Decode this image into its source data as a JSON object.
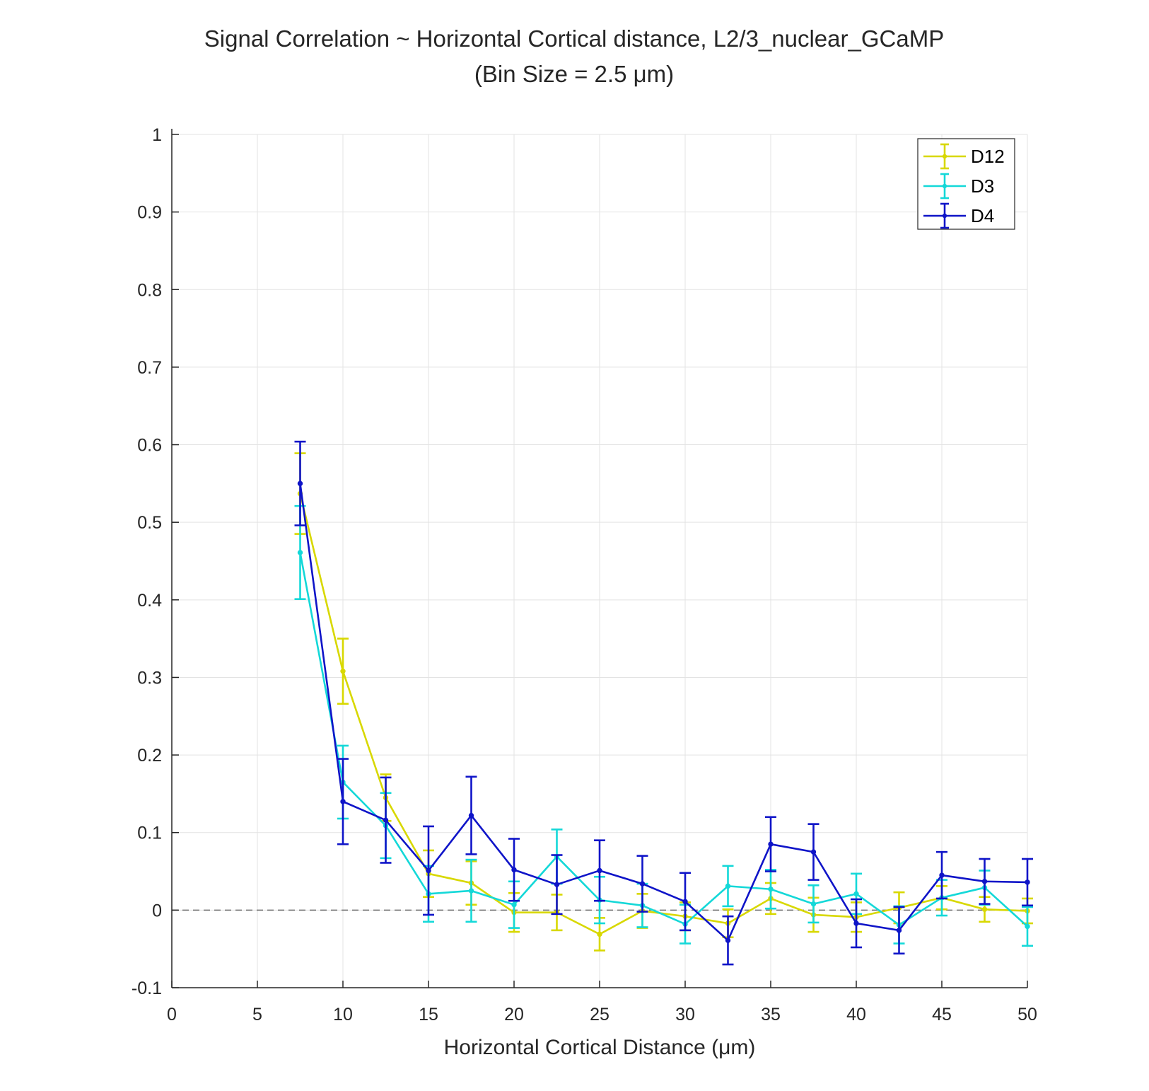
{
  "chart_data": {
    "type": "line",
    "title": "Signal Correlation ~ Horizontal Cortical distance, L2/3_nuclear_GCaMP",
    "subtitle": "(Bin Size = 2.5 μm)",
    "xlabel": "Horizontal Cortical Distance (μm)",
    "ylabel": "",
    "xlim": [
      0,
      50
    ],
    "ylim": [
      -0.1,
      1
    ],
    "xticks": [
      0,
      5,
      10,
      15,
      20,
      25,
      30,
      35,
      40,
      45,
      50
    ],
    "xtick_labels": [
      "0",
      "5",
      "10",
      "15",
      "20",
      "25",
      "30",
      "35",
      "40",
      "45",
      "50"
    ],
    "yticks": [
      -0.1,
      0,
      0.1,
      0.2,
      0.3,
      0.4,
      0.5,
      0.6,
      0.7,
      0.8,
      0.9,
      1
    ],
    "ytick_labels": [
      "-0.1",
      "0",
      "0.1",
      "0.2",
      "0.3",
      "0.4",
      "0.5",
      "0.6",
      "0.7",
      "0.8",
      "0.9",
      "1"
    ],
    "grid": true,
    "reference_line": {
      "y": 0,
      "style": "dashed",
      "color": "#6e6e6e"
    },
    "legend": {
      "position": "top-right",
      "entries": [
        "D12",
        "D3",
        "D4"
      ]
    },
    "x": [
      7.5,
      10,
      12.5,
      15,
      17.5,
      20,
      22.5,
      25,
      27.5,
      30,
      32.5,
      35,
      37.5,
      40,
      42.5,
      45,
      47.5,
      50
    ],
    "series": [
      {
        "name": "D12",
        "color": "#d8d800",
        "values": [
          0.537,
          0.308,
          0.145,
          0.047,
          0.035,
          -0.003,
          -0.003,
          -0.031,
          -0.001,
          -0.008,
          -0.017,
          0.015,
          -0.006,
          -0.009,
          0.003,
          0.016,
          0.001,
          -0.001
        ],
        "errors": [
          0.052,
          0.042,
          0.03,
          0.03,
          0.028,
          0.025,
          0.023,
          0.021,
          0.022,
          0.018,
          0.018,
          0.02,
          0.022,
          0.019,
          0.02,
          0.015,
          0.016,
          0.016
        ]
      },
      {
        "name": "D3",
        "color": "#14d8d8",
        "values": [
          0.461,
          0.165,
          0.109,
          0.021,
          0.025,
          0.007,
          0.069,
          0.013,
          0.006,
          -0.018,
          0.031,
          0.027,
          0.008,
          0.021,
          -0.019,
          0.016,
          0.029,
          -0.021
        ],
        "errors": [
          0.06,
          0.047,
          0.042,
          0.036,
          0.04,
          0.03,
          0.035,
          0.03,
          0.028,
          0.025,
          0.026,
          0.025,
          0.024,
          0.026,
          0.024,
          0.023,
          0.022,
          0.025
        ]
      },
      {
        "name": "D4",
        "color": "#0f14c8",
        "values": [
          0.55,
          0.14,
          0.116,
          0.051,
          0.122,
          0.052,
          0.033,
          0.051,
          0.034,
          0.011,
          -0.039,
          0.085,
          0.075,
          -0.017,
          -0.026,
          0.045,
          0.037,
          0.036
        ],
        "errors": [
          0.054,
          0.055,
          0.055,
          0.057,
          0.05,
          0.04,
          0.038,
          0.039,
          0.036,
          0.037,
          0.031,
          0.035,
          0.036,
          0.031,
          0.03,
          0.03,
          0.029,
          0.03
        ]
      }
    ]
  }
}
